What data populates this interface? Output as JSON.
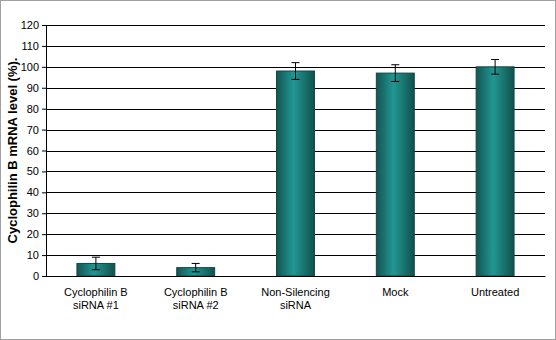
{
  "chart_data": {
    "type": "bar",
    "y_label": "Cyclophilin B mRNA level (%).",
    "categories": [
      "Cyclophilin B\nsiRNA #1",
      "Cyclophilin B\nsiRNA #2",
      "Non-Silencing\nsiRNA",
      "Mock",
      "Untreated"
    ],
    "values": [
      6,
      4,
      98,
      97,
      100
    ],
    "errors": [
      3,
      2,
      4,
      4,
      3.5
    ],
    "color": "#1b7a76",
    "ylim": [
      0,
      120
    ],
    "yticks": [
      0,
      10,
      20,
      30,
      40,
      50,
      60,
      70,
      80,
      90,
      100,
      110,
      120
    ],
    "grid": true
  }
}
